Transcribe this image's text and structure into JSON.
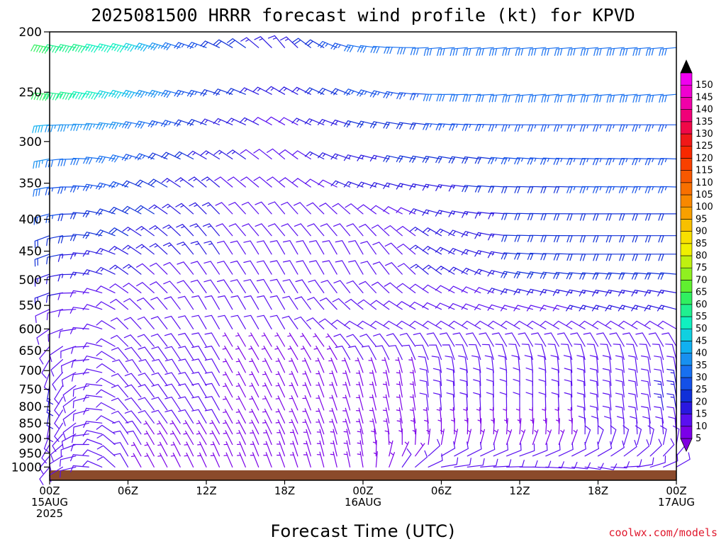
{
  "chart_data": {
    "type": "wind-profile",
    "title": "2025081500 HRRR forecast wind profile (kt) for KPVD",
    "xlabel": "Forecast Time (UTC)",
    "credit": "coolwx.com/models",
    "y_scale": "log",
    "ylim": [
      200,
      1050
    ],
    "yticks": [
      200,
      250,
      300,
      350,
      400,
      450,
      500,
      550,
      600,
      650,
      700,
      750,
      800,
      850,
      900,
      950,
      1000
    ],
    "xlim": [
      0,
      48
    ],
    "xticks": [
      {
        "hour": 0,
        "line1": "00Z",
        "line2": "15AUG",
        "line3": "2025"
      },
      {
        "hour": 6,
        "line1": "06Z",
        "line2": "",
        "line3": ""
      },
      {
        "hour": 12,
        "line1": "12Z",
        "line2": "",
        "line3": ""
      },
      {
        "hour": 18,
        "line1": "18Z",
        "line2": "",
        "line3": ""
      },
      {
        "hour": 24,
        "line1": "00Z",
        "line2": "16AUG",
        "line3": ""
      },
      {
        "hour": 30,
        "line1": "06Z",
        "line2": "",
        "line3": ""
      },
      {
        "hour": 36,
        "line1": "12Z",
        "line2": "",
        "line3": ""
      },
      {
        "hour": 42,
        "line1": "18Z",
        "line2": "",
        "line3": ""
      },
      {
        "hour": 48,
        "line1": "00Z",
        "line2": "17AUG",
        "line3": ""
      }
    ],
    "ground_color": "#8b4a2b",
    "colorbar": {
      "levels": [
        5,
        10,
        15,
        20,
        25,
        30,
        35,
        40,
        45,
        50,
        55,
        60,
        65,
        70,
        75,
        80,
        85,
        90,
        95,
        100,
        105,
        110,
        115,
        120,
        125,
        130,
        135,
        140,
        145,
        150
      ],
      "colors": [
        "#7b00e8",
        "#5a10f0",
        "#2a18e0",
        "#1030d8",
        "#1450e8",
        "#1870f0",
        "#1890f0",
        "#10b0f0",
        "#10d0e0",
        "#10f0c0",
        "#20f090",
        "#30f060",
        "#60f030",
        "#90f020",
        "#c0f010",
        "#f0f000",
        "#f8e000",
        "#f8c000",
        "#f8a000",
        "#f88800",
        "#f87000",
        "#f85800",
        "#f84000",
        "#f82800",
        "#f01818",
        "#f00848",
        "#f00078",
        "#f000a8",
        "#f000d0",
        "#f000f0"
      ],
      "under_color": "#8000e0",
      "over_color": "#000000"
    },
    "wind_levels_hpa": [
      212,
      252,
      282,
      320,
      355,
      392,
      425,
      455,
      490,
      525,
      558,
      600,
      640,
      672,
      705,
      740,
      772,
      810,
      850,
      885,
      920,
      960,
      1000
    ],
    "wind_times_hours": [
      0,
      1,
      2,
      3,
      4,
      5,
      6,
      7,
      8,
      9,
      10,
      11,
      12,
      13,
      14,
      15,
      16,
      17,
      18,
      19,
      20,
      21,
      22,
      23,
      24,
      25,
      26,
      27,
      28,
      29,
      30,
      31,
      32,
      33,
      34,
      35,
      36,
      37,
      38,
      39,
      40,
      41,
      42,
      43,
      44,
      45,
      46,
      47,
      48
    ],
    "wind_field_keyframes": {
      "hours": [
        0,
        6,
        12,
        18,
        24,
        30,
        36,
        42,
        48
      ],
      "direction_deg": [
        [
          280,
          285,
          290,
          320,
          280,
          265,
          265,
          265,
          265
        ],
        [
          275,
          285,
          285,
          300,
          290,
          270,
          265,
          265,
          265
        ],
        [
          265,
          280,
          290,
          300,
          285,
          275,
          270,
          270,
          270
        ],
        [
          260,
          285,
          300,
          310,
          285,
          280,
          275,
          272,
          272
        ],
        [
          260,
          290,
          310,
          310,
          290,
          280,
          272,
          272,
          272
        ],
        [
          255,
          295,
          315,
          320,
          310,
          285,
          272,
          270,
          270
        ],
        [
          250,
          300,
          320,
          320,
          320,
          300,
          272,
          270,
          270
        ],
        [
          250,
          300,
          325,
          330,
          330,
          300,
          275,
          270,
          270
        ],
        [
          250,
          305,
          325,
          330,
          330,
          305,
          280,
          275,
          275
        ],
        [
          250,
          305,
          325,
          330,
          320,
          300,
          285,
          280,
          280
        ],
        [
          245,
          310,
          330,
          330,
          310,
          295,
          285,
          285,
          285
        ],
        [
          235,
          315,
          330,
          330,
          300,
          300,
          300,
          300,
          300
        ],
        [
          220,
          315,
          330,
          330,
          320,
          330,
          330,
          330,
          330
        ],
        [
          210,
          320,
          330,
          330,
          330,
          340,
          345,
          345,
          345
        ],
        [
          200,
          325,
          330,
          335,
          340,
          350,
          355,
          355,
          350
        ],
        [
          190,
          320,
          330,
          335,
          345,
          355,
          360,
          355,
          350
        ],
        [
          190,
          320,
          330,
          335,
          345,
          355,
          360,
          355,
          350
        ],
        [
          190,
          320,
          330,
          335,
          345,
          355,
          360,
          355,
          350
        ],
        [
          190,
          320,
          330,
          335,
          345,
          355,
          360,
          355,
          350
        ],
        [
          200,
          325,
          330,
          335,
          345,
          0,
          5,
          0,
          355
        ],
        [
          210,
          330,
          330,
          340,
          350,
          10,
          20,
          20,
          10
        ],
        [
          220,
          330,
          335,
          340,
          350,
          60,
          70,
          60,
          40
        ],
        [
          220,
          330,
          335,
          340,
          350,
          80,
          90,
          100,
          60
        ]
      ],
      "speed_kt": [
        [
          60,
          50,
          25,
          15,
          30,
          30,
          30,
          30,
          30
        ],
        [
          60,
          45,
          25,
          15,
          25,
          30,
          30,
          30,
          30
        ],
        [
          40,
          35,
          20,
          12,
          20,
          25,
          25,
          28,
          28
        ],
        [
          35,
          30,
          18,
          12,
          18,
          22,
          25,
          28,
          28
        ],
        [
          30,
          25,
          15,
          12,
          15,
          18,
          22,
          25,
          25
        ],
        [
          25,
          22,
          15,
          12,
          12,
          15,
          20,
          22,
          22
        ],
        [
          22,
          20,
          15,
          12,
          12,
          15,
          20,
          22,
          22
        ],
        [
          20,
          18,
          15,
          12,
          12,
          15,
          20,
          22,
          22
        ],
        [
          18,
          15,
          13,
          12,
          12,
          15,
          20,
          22,
          22
        ],
        [
          15,
          13,
          12,
          10,
          10,
          12,
          15,
          18,
          18
        ],
        [
          12,
          12,
          10,
          10,
          10,
          10,
          12,
          15,
          15
        ],
        [
          10,
          10,
          10,
          10,
          10,
          10,
          10,
          12,
          12
        ],
        [
          10,
          10,
          10,
          8,
          10,
          10,
          10,
          10,
          10
        ],
        [
          10,
          10,
          10,
          8,
          10,
          10,
          10,
          10,
          12
        ],
        [
          12,
          10,
          10,
          8,
          8,
          10,
          10,
          10,
          12
        ],
        [
          15,
          10,
          10,
          8,
          8,
          10,
          10,
          10,
          15
        ],
        [
          15,
          10,
          10,
          8,
          8,
          10,
          10,
          12,
          15
        ],
        [
          15,
          10,
          10,
          8,
          8,
          10,
          10,
          12,
          15
        ],
        [
          12,
          10,
          10,
          8,
          8,
          8,
          8,
          10,
          12
        ],
        [
          10,
          10,
          8,
          8,
          8,
          8,
          8,
          10,
          12
        ],
        [
          10,
          10,
          8,
          5,
          8,
          8,
          8,
          10,
          10
        ],
        [
          10,
          10,
          5,
          5,
          8,
          10,
          10,
          10,
          10
        ],
        [
          10,
          10,
          5,
          5,
          8,
          12,
          12,
          10,
          10
        ]
      ]
    }
  }
}
